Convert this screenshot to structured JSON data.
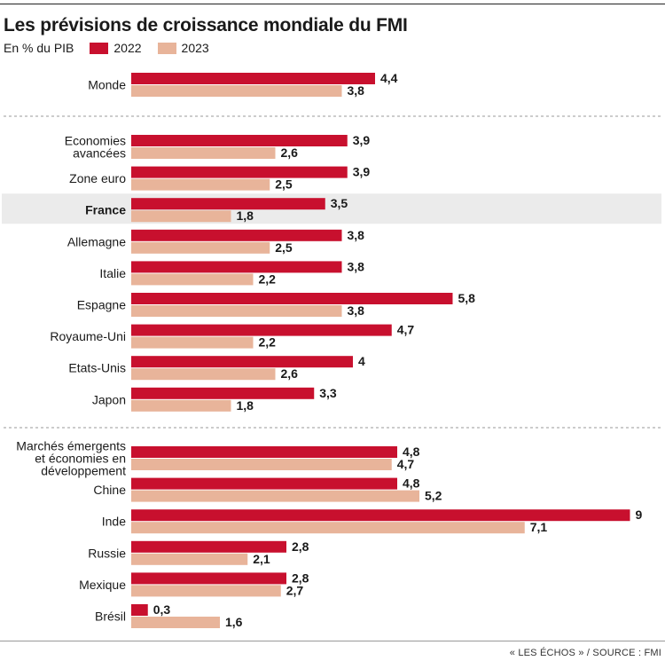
{
  "title": "Les prévisions de croissance mondiale du FMI",
  "subtitle": "En % du PIB",
  "source": "« LES ÉCHOS » / SOURCE : FMI",
  "colors": {
    "s2022": "#c8102e",
    "s2023": "#e8b49a",
    "highlight": "#ebebeb"
  },
  "chart_data": {
    "type": "bar",
    "orientation": "horizontal",
    "title": "Les prévisions de croissance mondiale du FMI",
    "ylabel": "En % du PIB",
    "legend": "top-left",
    "series": [
      {
        "name": "2022",
        "values": [
          4.4,
          3.9,
          3.9,
          3.5,
          3.8,
          3.8,
          5.8,
          4.7,
          4,
          3.3,
          4.8,
          4.8,
          9,
          2.8,
          2.8,
          0.3
        ]
      },
      {
        "name": "2023",
        "values": [
          3.8,
          2.6,
          2.5,
          1.8,
          2.5,
          2.2,
          3.8,
          2.2,
          2.6,
          1.8,
          4.7,
          5.2,
          7.1,
          2.1,
          2.7,
          1.6
        ]
      }
    ],
    "value_labels_2022": [
      "4,4",
      "3,9",
      "3,9",
      "3,5",
      "3,8",
      "3,8",
      "5,8",
      "4,7",
      "4",
      "3,3",
      "4,8",
      "4,8",
      "9",
      "2,8",
      "2,8",
      "0,3"
    ],
    "value_labels_2023": [
      "3,8",
      "2,6",
      "2,5",
      "1,8",
      "2,5",
      "2,2",
      "3,8",
      "2,2",
      "2,6",
      "1,8",
      "4,7",
      "5,2",
      "7,1",
      "2,1",
      "2,7",
      "1,6"
    ],
    "categories": [
      {
        "lines": [
          "Monde"
        ],
        "group": 0,
        "highlight": false
      },
      {
        "lines": [
          "Economies",
          "avancées"
        ],
        "group": 1,
        "highlight": false
      },
      {
        "lines": [
          "Zone euro"
        ],
        "group": 1,
        "highlight": false
      },
      {
        "lines": [
          "France"
        ],
        "group": 1,
        "highlight": true
      },
      {
        "lines": [
          "Allemagne"
        ],
        "group": 1,
        "highlight": false
      },
      {
        "lines": [
          "Italie"
        ],
        "group": 1,
        "highlight": false
      },
      {
        "lines": [
          "Espagne"
        ],
        "group": 1,
        "highlight": false
      },
      {
        "lines": [
          "Royaume-Uni"
        ],
        "group": 1,
        "highlight": false
      },
      {
        "lines": [
          "Etats-Unis"
        ],
        "group": 1,
        "highlight": false
      },
      {
        "lines": [
          "Japon"
        ],
        "group": 1,
        "highlight": false
      },
      {
        "lines": [
          "Marchés émergents",
          "et économies en",
          "développement"
        ],
        "group": 2,
        "highlight": false
      },
      {
        "lines": [
          "Chine"
        ],
        "group": 2,
        "highlight": false
      },
      {
        "lines": [
          "Inde"
        ],
        "group": 2,
        "highlight": false
      },
      {
        "lines": [
          "Russie"
        ],
        "group": 2,
        "highlight": false
      },
      {
        "lines": [
          "Mexique"
        ],
        "group": 2,
        "highlight": false
      },
      {
        "lines": [
          "Brésil"
        ],
        "group": 2,
        "highlight": false
      }
    ],
    "xlim": [
      0,
      9
    ],
    "grid": false
  }
}
